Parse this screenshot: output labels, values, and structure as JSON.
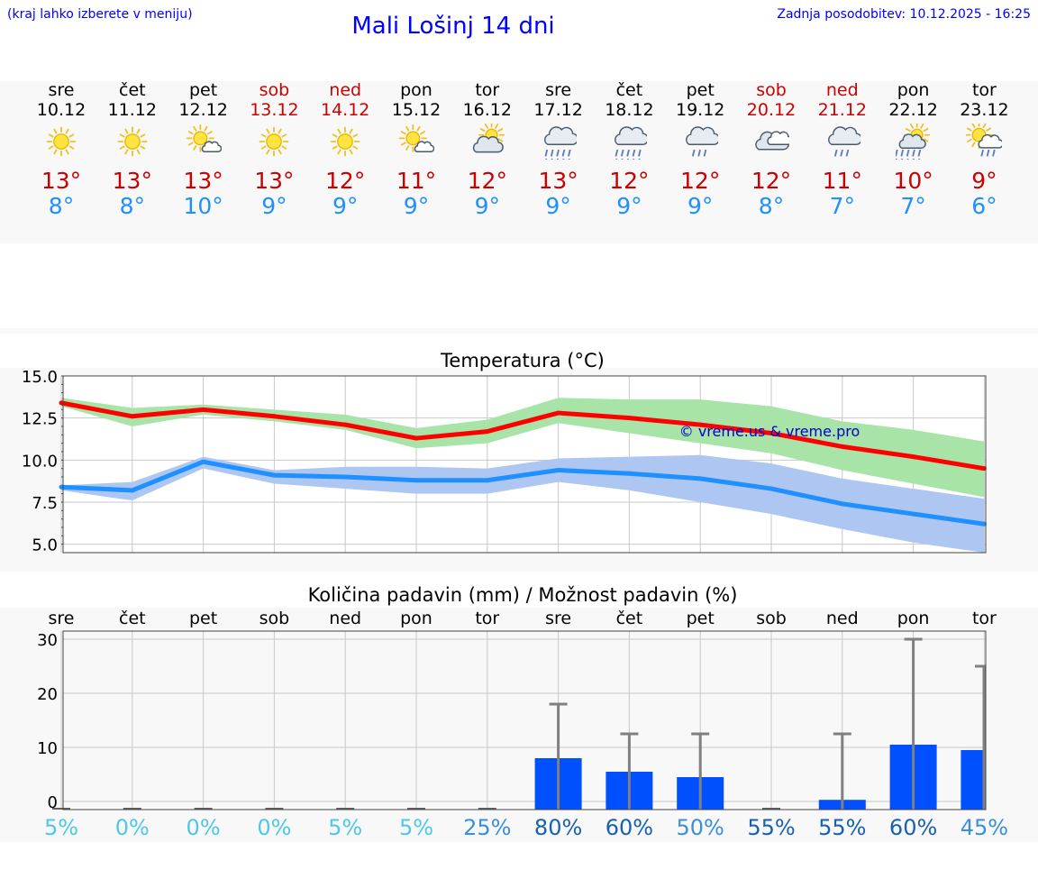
{
  "header": {
    "note": "(kraj lahko izberete v meniju)",
    "title": "Mali Lošinj 14 dni",
    "update": "Zadnja posodobitev: 10.12.2025 - 16:25"
  },
  "days": [
    {
      "name": "sre",
      "date": "10.12",
      "weekend": false,
      "icon": "sun-icon",
      "max": "13°",
      "min": "8°"
    },
    {
      "name": "čet",
      "date": "11.12",
      "weekend": false,
      "icon": "sun-icon",
      "max": "13°",
      "min": "8°"
    },
    {
      "name": "pet",
      "date": "12.12",
      "weekend": false,
      "icon": "sun-cloud-icon",
      "max": "13°",
      "min": "10°"
    },
    {
      "name": "sob",
      "date": "13.12",
      "weekend": true,
      "icon": "sun-icon",
      "max": "13°",
      "min": "9°"
    },
    {
      "name": "ned",
      "date": "14.12",
      "weekend": true,
      "icon": "sun-icon",
      "max": "12°",
      "min": "9°"
    },
    {
      "name": "pon",
      "date": "15.12",
      "weekend": false,
      "icon": "sun-cloud-icon",
      "max": "11°",
      "min": "9°"
    },
    {
      "name": "tor",
      "date": "16.12",
      "weekend": false,
      "icon": "cloud-sun-icon",
      "max": "12°",
      "min": "9°"
    },
    {
      "name": "sre",
      "date": "17.12",
      "weekend": false,
      "icon": "cloud-rain-heavy-icon",
      "max": "13°",
      "min": "9°"
    },
    {
      "name": "čet",
      "date": "18.12",
      "weekend": false,
      "icon": "cloud-rain-heavy-icon",
      "max": "12°",
      "min": "9°"
    },
    {
      "name": "pet",
      "date": "19.12",
      "weekend": false,
      "icon": "cloud-rain-light-icon",
      "max": "12°",
      "min": "9°"
    },
    {
      "name": "sob",
      "date": "20.12",
      "weekend": true,
      "icon": "cloud-icon",
      "max": "12°",
      "min": "8°"
    },
    {
      "name": "ned",
      "date": "21.12",
      "weekend": true,
      "icon": "cloud-rain-light-icon",
      "max": "11°",
      "min": "7°"
    },
    {
      "name": "pon",
      "date": "22.12",
      "weekend": false,
      "icon": "sun-cloud-rain-heavy-icon",
      "max": "10°",
      "min": "7°"
    },
    {
      "name": "tor",
      "date": "23.12",
      "weekend": false,
      "icon": "sun-cloud-rain-light-icon",
      "max": "9°",
      "min": "6°"
    }
  ],
  "colors": {
    "max_line": "#ff0000",
    "max_band": "#a8e4a8",
    "min_line": "#1e90ff",
    "min_band": "#aec6f2",
    "bar": "#0050ff",
    "error": "#808080",
    "pct_light": "#4dc8e8",
    "pct_mid": "#3a8fd8",
    "pct_dark": "#1860b0"
  },
  "chart_data": [
    {
      "type": "line",
      "title": "Temperatura (°C)",
      "watermark": "© vreme.us & vreme.pro",
      "x": [
        "10.12",
        "11.12",
        "12.12",
        "13.12",
        "14.12",
        "15.12",
        "16.12",
        "17.12",
        "18.12",
        "19.12",
        "20.12",
        "21.12",
        "22.12",
        "23.12"
      ],
      "ylim": [
        4.5,
        15.0
      ],
      "yticks": [
        "15.0",
        "12.5",
        "10.0",
        "7.5",
        "5.0"
      ],
      "ytick_values": [
        15.0,
        12.5,
        10.0,
        7.5,
        5.0
      ],
      "series": [
        {
          "name": "max",
          "values": [
            13.4,
            12.6,
            13.0,
            12.6,
            12.1,
            11.3,
            11.7,
            12.8,
            12.5,
            12.1,
            11.6,
            10.8,
            10.2,
            9.5
          ],
          "band_low": [
            13.2,
            12.0,
            12.7,
            12.3,
            11.8,
            10.7,
            11.0,
            12.2,
            11.6,
            11.0,
            10.4,
            9.4,
            8.6,
            7.8
          ],
          "band_high": [
            13.7,
            13.1,
            13.3,
            13.0,
            12.7,
            11.9,
            12.4,
            13.7,
            13.6,
            13.6,
            13.2,
            12.3,
            11.8,
            11.1
          ]
        },
        {
          "name": "min",
          "values": [
            8.4,
            8.2,
            9.9,
            9.1,
            9.0,
            8.8,
            8.8,
            9.4,
            9.2,
            8.9,
            8.3,
            7.4,
            6.8,
            6.2
          ],
          "band_low": [
            8.2,
            7.6,
            9.5,
            8.6,
            8.3,
            8.0,
            8.0,
            8.7,
            8.2,
            7.5,
            6.8,
            5.9,
            5.1,
            4.5
          ],
          "band_high": [
            8.5,
            8.7,
            10.2,
            9.4,
            9.6,
            9.6,
            9.5,
            10.1,
            10.2,
            10.3,
            9.8,
            8.9,
            8.3,
            7.7
          ]
        }
      ]
    },
    {
      "type": "bar",
      "title": "Količina padavin (mm) / Možnost padavin (%)",
      "categories": [
        "sre",
        "čet",
        "pet",
        "sob",
        "ned",
        "pon",
        "tor",
        "sre",
        "čet",
        "pet",
        "sob",
        "ned",
        "pon",
        "tor"
      ],
      "values": [
        0,
        0,
        0,
        0,
        0,
        0,
        0,
        8.0,
        5.5,
        4.5,
        0,
        0.3,
        10.5,
        9.5
      ],
      "error_high": [
        0,
        0,
        0,
        0,
        0,
        0,
        0,
        18,
        12.5,
        12.5,
        0,
        12.5,
        30,
        25
      ],
      "ylim": [
        -1.5,
        31.5
      ],
      "yticks": [
        "30",
        "20",
        "10",
        "0"
      ],
      "ytick_values": [
        30,
        20,
        10,
        0
      ],
      "probabilities": [
        "5%",
        "0%",
        "0%",
        "0%",
        "5%",
        "5%",
        "25%",
        "80%",
        "60%",
        "50%",
        "55%",
        "55%",
        "60%",
        "45%"
      ],
      "probability_values": [
        5,
        0,
        0,
        0,
        5,
        5,
        25,
        80,
        60,
        50,
        55,
        55,
        60,
        45
      ]
    }
  ]
}
